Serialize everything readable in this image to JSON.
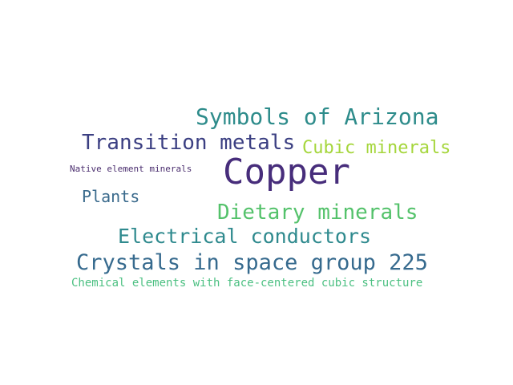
{
  "wordcloud": {
    "words": [
      {
        "text": "Copper",
        "color": "#472d7b"
      },
      {
        "text": "Symbols of Arizona",
        "color": "#2e8c8b"
      },
      {
        "text": "Transition metals",
        "color": "#3b3f82"
      },
      {
        "text": "Cubic minerals",
        "color": "#a5d63c"
      },
      {
        "text": "Native element minerals",
        "color": "#4a2d6e"
      },
      {
        "text": "Plants",
        "color": "#3a6a8c"
      },
      {
        "text": "Dietary minerals",
        "color": "#54c26b"
      },
      {
        "text": "Electrical conductors",
        "color": "#2f8a8e"
      },
      {
        "text": "Crystals in space group 225",
        "color": "#366a8e"
      },
      {
        "text": "Chemical elements with face-centered cubic structure",
        "color": "#4cc082"
      }
    ]
  }
}
